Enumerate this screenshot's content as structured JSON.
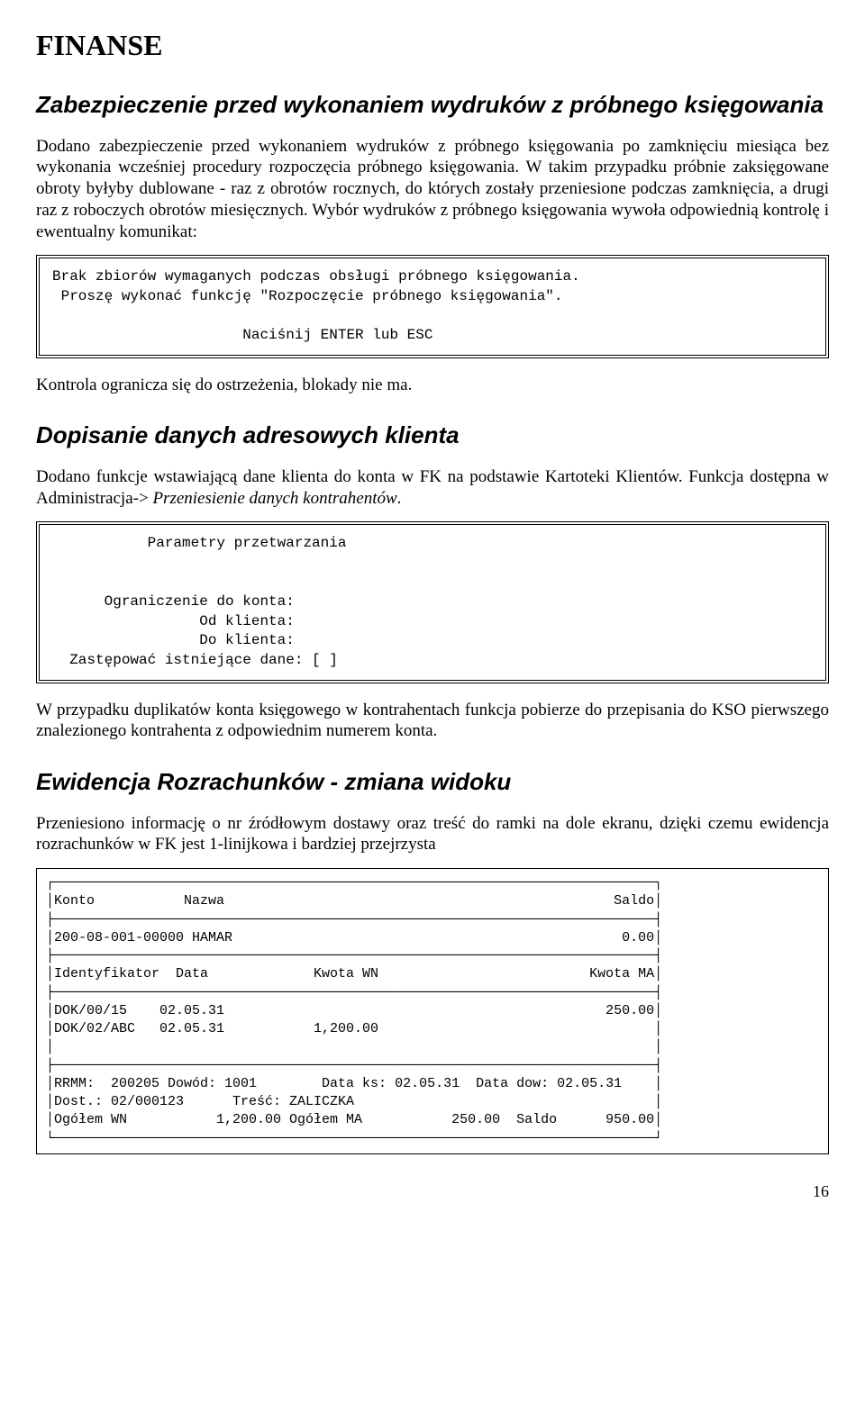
{
  "page_title": "FINANSE",
  "section1": {
    "heading": "Zabezpieczenie przed wykonaniem wydruków z próbnego księgowania",
    "para": "Dodano zabezpieczenie przed wykonaniem wydruków z próbnego księgowania po zamknięciu miesiąca bez wykonania wcześniej procedury rozpoczęcia próbnego księgowania. W takim przypadku próbnie zaksięgowane obroty byłyby dublowane - raz z obrotów rocznych, do których zostały przeniesione podczas zamknięcia, a drugi raz z roboczych obrotów miesięcznych. Wybór wydruków z próbnego księgowania wywoła odpowiednią kontrolę i ewentualny komunikat:",
    "box": "Brak zbiorów wymaganych podczas obsługi próbnego księgowania.\n Proszę wykonać funkcję \"Rozpoczęcie próbnego księgowania\".\n\n                      Naciśnij ENTER lub ESC",
    "after": "Kontrola ogranicza się do ostrzeżenia, blokady nie ma."
  },
  "section2": {
    "heading": "Dopisanie danych adresowych klienta",
    "para1_a": "Dodano funkcje wstawiającą dane klienta do konta w FK na podstawie Kartoteki Klientów. Funkcja dostępna w Administracja-> ",
    "para1_em": "Przeniesienie danych kontrahentów",
    "para1_b": ".",
    "box": "           Parametry przetwarzania\n\n\n      Ograniczenie do konta:\n                 Od klienta:\n                 Do klienta:\n  Zastępować istniejące dane: [ ]",
    "after": "W przypadku duplikatów konta księgowego w kontrahentach funkcja  pobierze do przepisania do KSO pierwszego znalezionego kontrahenta z odpowiednim numerem konta."
  },
  "section3": {
    "heading": "Ewidencja Rozrachunków - zmiana widoku",
    "para": "Przeniesiono informację o nr źródłowym dostawy oraz treść do ramki na dole ekranu, dzięki czemu ewidencja rozrachunków w FK jest 1-linijkowa i bardziej przejrzysta",
    "table": "┌──────────────────────────────────────────────────────────────────────────┐\n│Konto           Nazwa                                                Saldo│\n├──────────────────────────────────────────────────────────────────────────┤\n│200-08-001-00000 HAMAR                                                0.00│\n├──────────────────────────────────────────────────────────────────────────┤\n│Identyfikator  Data             Kwota WN                          Kwota MA│\n├──────────────────────────────────────────────────────────────────────────┤\n│DOK/00/15    02.05.31                                               250.00│\n│DOK/02/ABC   02.05.31           1,200.00                                  │\n│                                                                          │\n├──────────────────────────────────────────────────────────────────────────┤\n│RRMM:  200205 Dowód: 1001        Data ks: 02.05.31  Data dow: 02.05.31    │\n│Dost.: 02/000123      Treść: ZALICZKA                                     │\n│Ogółem WN           1,200.00 Ogółem MA           250.00  Saldo      950.00│\n└──────────────────────────────────────────────────────────────────────────┘"
  },
  "page_number": "16"
}
